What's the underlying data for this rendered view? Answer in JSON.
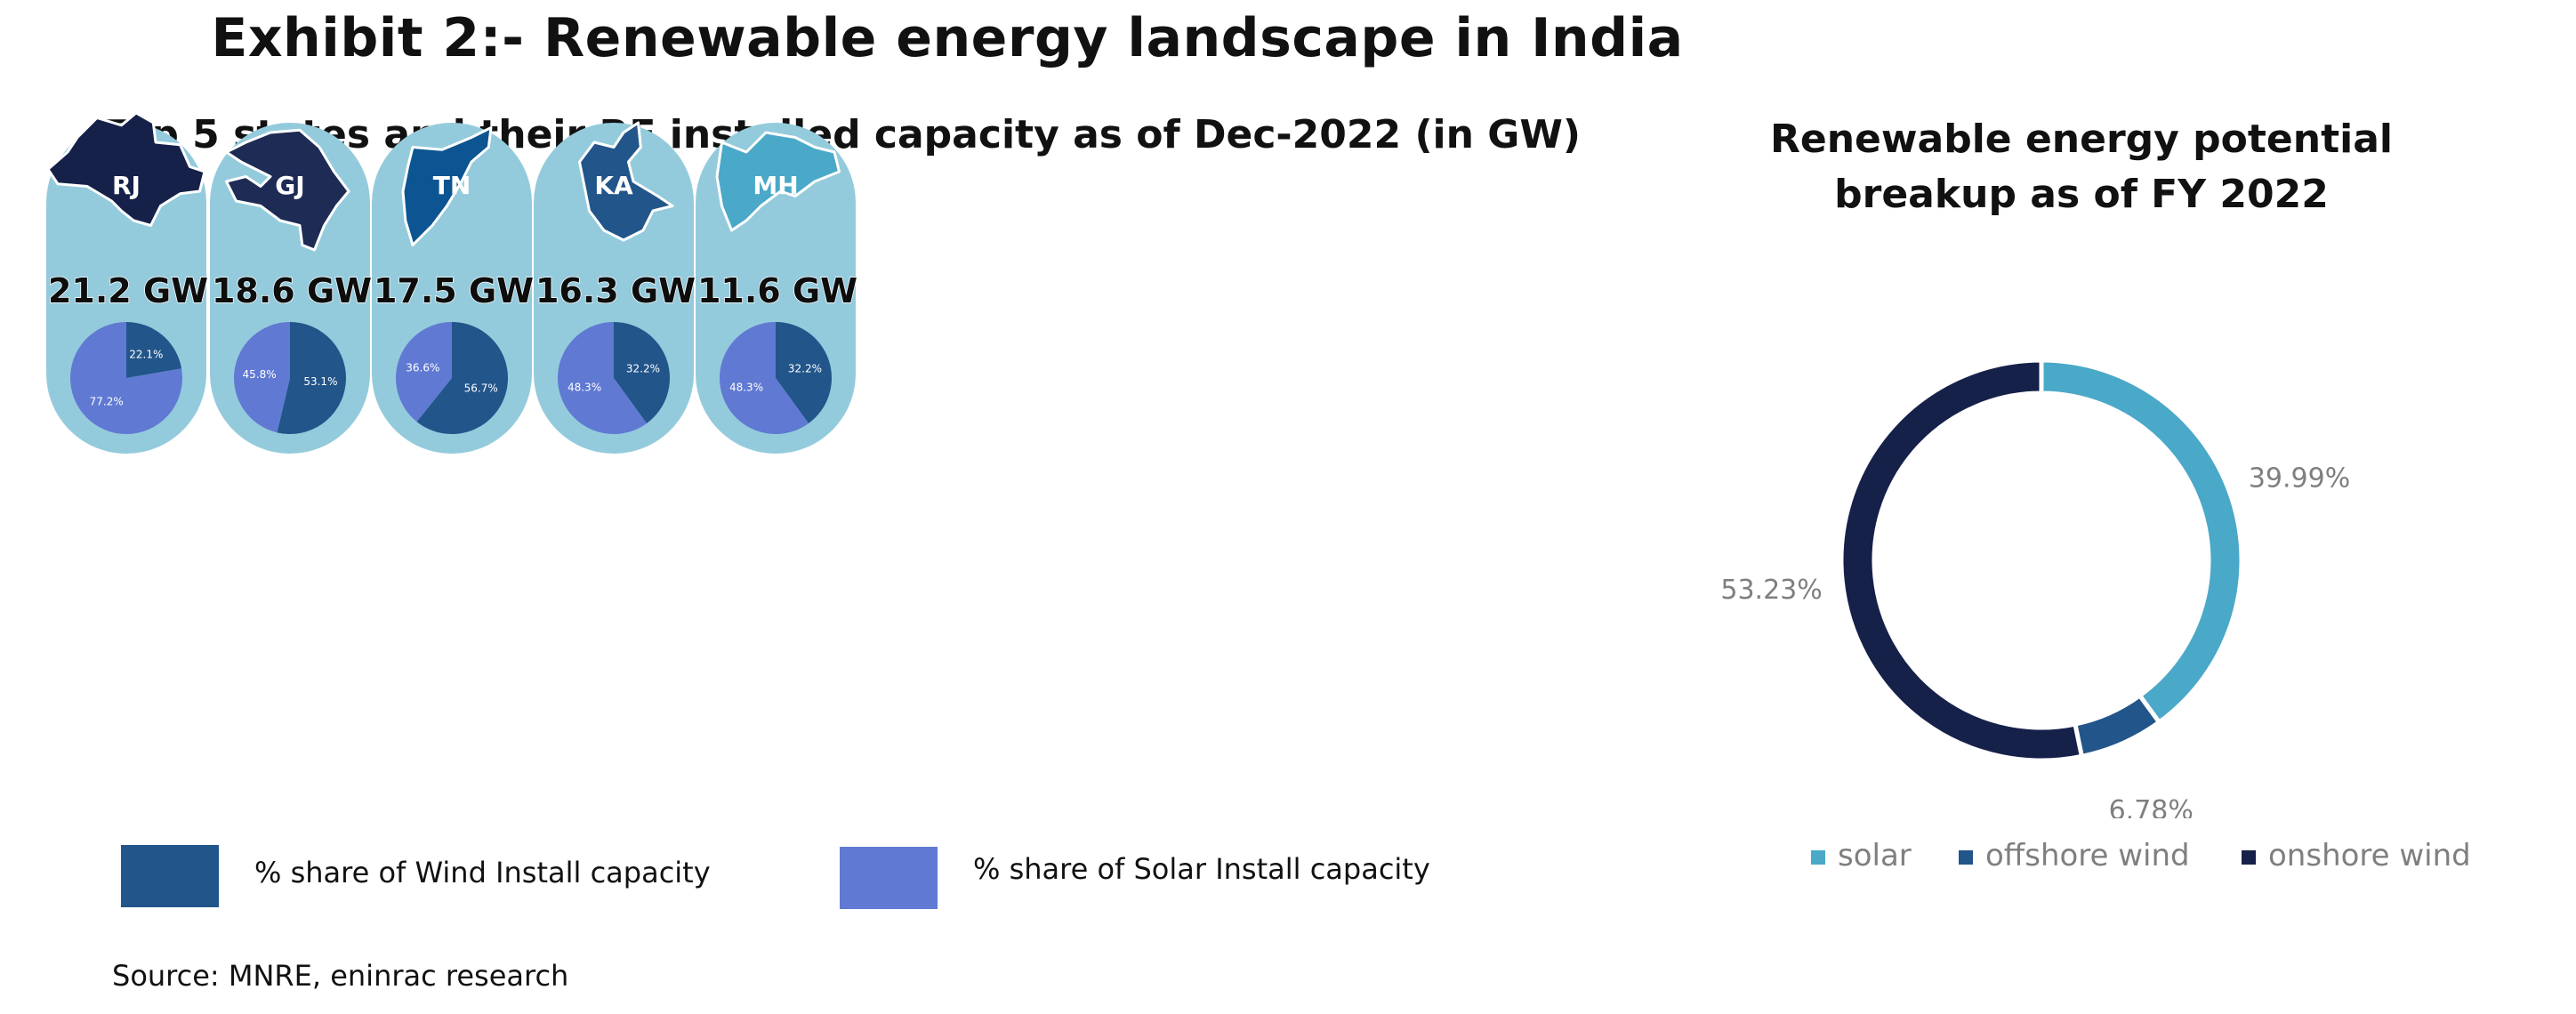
{
  "title": "Exhibit 2:- Renewable energy landscape in India",
  "source": "Source: MNRE, eninrac research",
  "colors": {
    "wind": "#22558a",
    "solar": "#6079d3",
    "card_bg": "#94cbdc",
    "solar_donut": "#4aa8c8",
    "offshore": "#22558a",
    "onshore": "#16214a"
  },
  "chart_data": [
    {
      "type": "pie",
      "title": "Top 5 states and their RE installed capacity as of Dec-2022 (in GW)",
      "series_names": [
        "% share of Wind Install capacity",
        "% share of Solar Install capacity"
      ],
      "states": [
        {
          "code": "RJ",
          "capacity_label": "21.2 GW",
          "capacity": 21.2,
          "wind": 22.1,
          "solar": 77.2,
          "wind_label": "22.1%",
          "solar_label": "77.2%"
        },
        {
          "code": "GJ",
          "capacity_label": "18.6 GW",
          "capacity": 18.6,
          "wind": 53.1,
          "solar": 45.8,
          "wind_label": "53.1%",
          "solar_label": "45.8%"
        },
        {
          "code": "TN",
          "capacity_label": "17.5 GW",
          "capacity": 17.5,
          "wind": 56.7,
          "solar": 36.6,
          "wind_label": "56.7%",
          "solar_label": "36.6%"
        },
        {
          "code": "KA",
          "capacity_label": "16.3 GW",
          "capacity": 16.3,
          "wind": 32.2,
          "solar": 48.3,
          "wind_label": "32.2%",
          "solar_label": "48.3%"
        },
        {
          "code": "MH",
          "capacity_label": "11.6 GW",
          "capacity": 11.6,
          "wind": 32.2,
          "solar": 48.3,
          "wind_label": "32.2%",
          "solar_label": "48.3%"
        }
      ]
    },
    {
      "type": "pie",
      "subtype": "donut",
      "title": "Renewable energy potential breakup as of FY 2022",
      "legend_position": "bottom",
      "categories": [
        "solar",
        "offshore wind",
        "onshore wind"
      ],
      "values": [
        39.99,
        6.78,
        53.23
      ],
      "labels": [
        "39.99%",
        "6.78%",
        "53.23%"
      ]
    }
  ]
}
